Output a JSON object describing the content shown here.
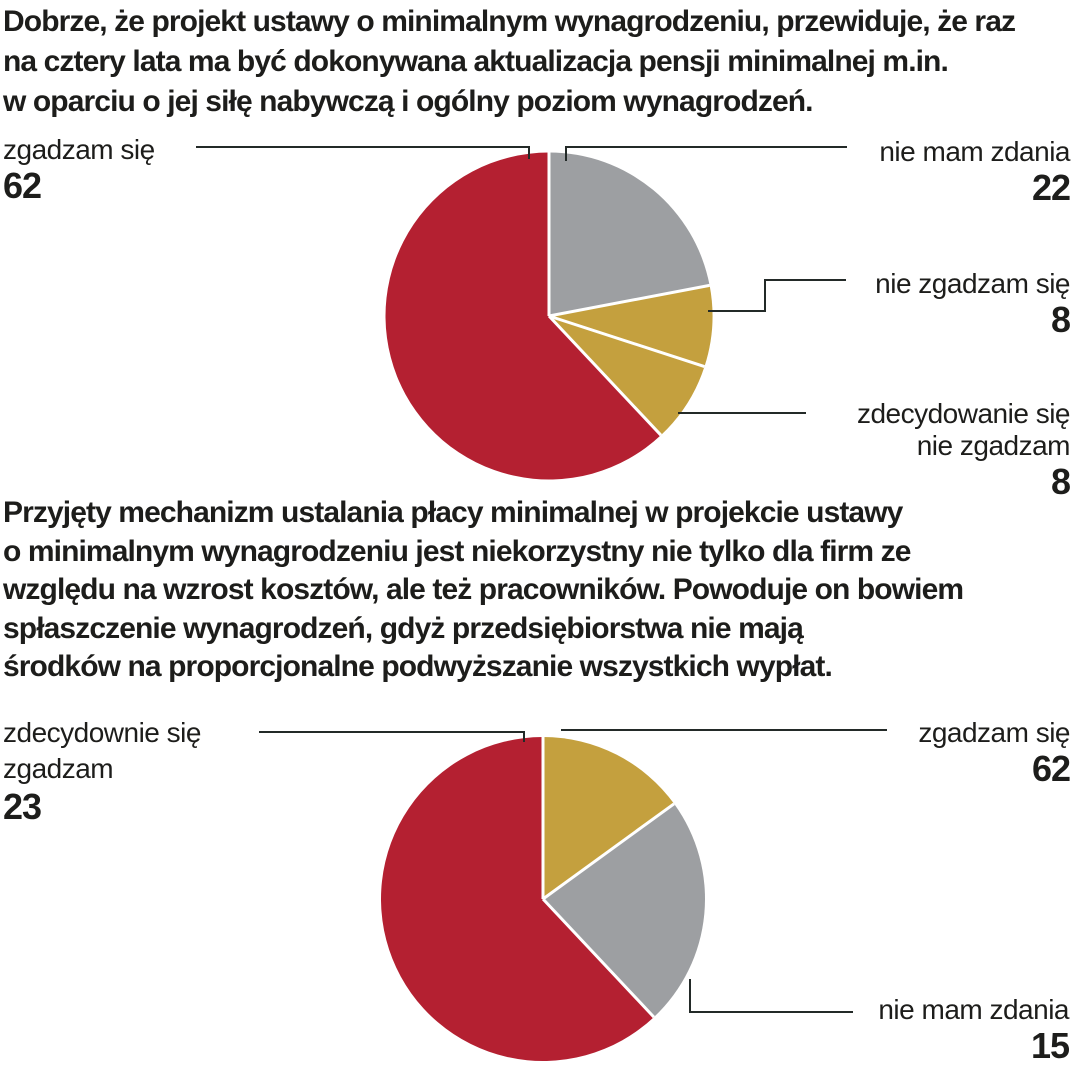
{
  "palette": {
    "red": "#b42031",
    "gold": "#c4a03e",
    "gray": "#9d9fa2",
    "text": "#1d1d1b",
    "leader_line": "#232a28",
    "background": "#ffffff",
    "slice_separator": "#ffffff"
  },
  "chart_data": [
    {
      "type": "pie",
      "question_lines": [
        "Dobrze, że projekt ustawy o minimalnym wynagrodzeniu, przewiduje, że raz",
        "na cztery lata ma być dokonywana aktualizacja pensji minimalnej m.in.",
        "w oparciu o jej siłę nabywczą i ogólny poziom wynagrodzeń."
      ],
      "data": [
        {
          "label": "zgadzam się",
          "value": 62
        },
        {
          "label": "nie mam zdania",
          "value": 22
        },
        {
          "label": "nie zgadzam się",
          "value": 8
        },
        {
          "label": "zdecydowanie się nie zgadzam",
          "value": 8
        }
      ],
      "drawn_slices_clockwise_from_top": [
        {
          "color": "gray",
          "pct": 22
        },
        {
          "color": "gold",
          "pct": 8
        },
        {
          "color": "gold",
          "pct": 8
        },
        {
          "color": "red",
          "pct": 62
        }
      ],
      "legend_position": "callouts-around-pie",
      "callouts": [
        {
          "position": "left",
          "lines": [
            "zgadzam się"
          ],
          "value": "62"
        },
        {
          "position": "top-right",
          "lines": [
            "nie mam zdania"
          ],
          "value": "22"
        },
        {
          "position": "right",
          "lines": [
            "nie zgadzam się"
          ],
          "value": "8"
        },
        {
          "position": "bottom-right",
          "lines": [
            "zdecydowanie się",
            "nie zgadzam"
          ],
          "value": "8"
        }
      ]
    },
    {
      "type": "pie",
      "question_lines": [
        "Przyjęty mechanizm ustalania płacy minimalnej w projekcie ustawy",
        "o minimalnym wynagrodzeniu jest niekorzystny nie tylko dla firm ze",
        "względu na wzrost kosztów, ale też pracowników. Powoduje on bowiem",
        "spłaszczenie wynagrodzeń, gdyż przedsiębiorstwa nie mają",
        "środków na proporcjonalne podwyższanie wszystkich wypłat."
      ],
      "data": [
        {
          "label": "zdecydownie się zgadzam",
          "value": 23
        },
        {
          "label": "zgadzam się",
          "value": 62
        },
        {
          "label": "nie mam zdania",
          "value": 15
        }
      ],
      "drawn_slices_clockwise_from_top": [
        {
          "color": "gold",
          "pct": 15
        },
        {
          "color": "gray",
          "pct": 23
        },
        {
          "color": "red",
          "pct": 62
        }
      ],
      "legend_position": "callouts-around-pie",
      "callouts": [
        {
          "position": "left",
          "lines": [
            "zdecydownie się",
            "zgadzam"
          ],
          "value": "23"
        },
        {
          "position": "top-right",
          "lines": [
            "zgadzam się"
          ],
          "value": "62"
        },
        {
          "position": "bottom-right",
          "lines": [
            "nie mam zdania"
          ],
          "value": "15"
        }
      ]
    }
  ]
}
